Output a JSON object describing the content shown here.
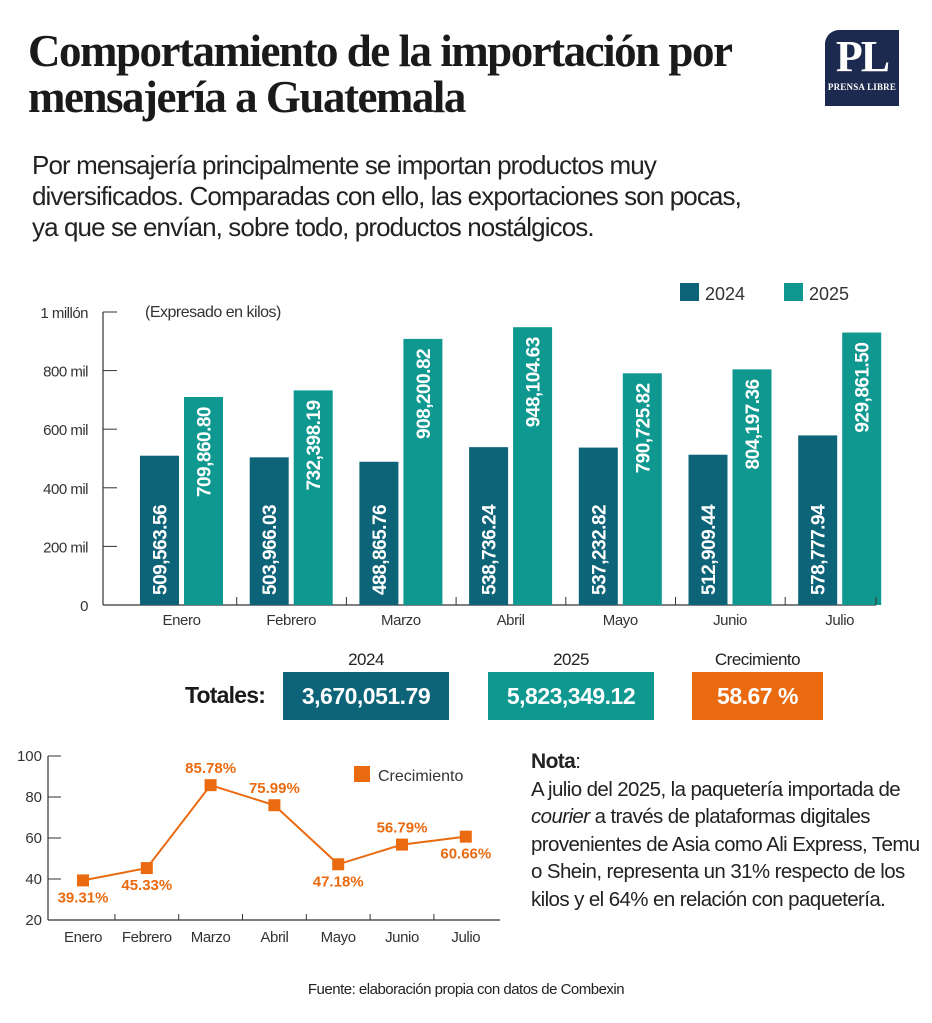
{
  "header": {
    "title": "Comportamiento de la importación por mensajería a Guatemala",
    "subtitle": "Por mensajería principalmente se importan productos muy diversificados. Comparadas con ello, las exportaciones son pocas, ya que se envían, sobre todo, productos nostálgicos.",
    "logo": {
      "monogram": "PL",
      "name": "PRENSA LIBRE",
      "color": "#1c2a4f"
    }
  },
  "chart_data": [
    {
      "type": "bar",
      "title": "",
      "annotation": "(Expresado en kilos)",
      "xlabel": "",
      "ylabel": "",
      "categories": [
        "Enero",
        "Febrero",
        "Marzo",
        "Abril",
        "Mayo",
        "Junio",
        "Julio"
      ],
      "series": [
        {
          "name": "2024",
          "color": "#0d6478",
          "values": [
            509563.56,
            503966.03,
            488865.76,
            538736.24,
            537232.82,
            512909.44,
            578777.94
          ],
          "labels": [
            "509,563.56",
            "503,966.03",
            "488,865.76",
            "538,736.24",
            "537,232.82",
            "512,909.44",
            "578,777.94"
          ]
        },
        {
          "name": "2025",
          "color": "#0e988f",
          "values": [
            709860.8,
            732398.19,
            908200.82,
            948104.63,
            790725.82,
            804197.36,
            929861.5
          ],
          "labels": [
            "709,860.80",
            "732,398.19",
            "908,200.82",
            "948,104.63",
            "790,725.82",
            "804,197.36",
            "929,861.50"
          ]
        }
      ],
      "ylim": [
        0,
        1000000
      ],
      "yticks": [
        0,
        200000,
        400000,
        600000,
        800000,
        1000000
      ],
      "ytick_labels": [
        "0",
        "200 mil",
        "400 mil",
        "600 mil",
        "800 mil",
        "1 millón"
      ],
      "grid": false,
      "legend": "top-right"
    },
    {
      "type": "line",
      "title": "",
      "xlabel": "",
      "ylabel": "",
      "categories": [
        "Enero",
        "Febrero",
        "Marzo",
        "Abril",
        "Mayo",
        "Junio",
        "Julio"
      ],
      "series": [
        {
          "name": "Crecimiento",
          "color": "#ea6a10",
          "values": [
            39.31,
            45.33,
            85.78,
            75.99,
            47.18,
            56.79,
            60.66
          ],
          "labels": [
            "39.31%",
            "45.33%",
            "85.78%",
            "75.99%",
            "47.18%",
            "56.79%",
            "60.66%"
          ]
        }
      ],
      "ylim": [
        20,
        100
      ],
      "yticks": [
        20,
        40,
        60,
        80,
        100
      ],
      "ytick_labels": [
        "20",
        "40",
        "60",
        "80",
        "100"
      ],
      "grid": false,
      "legend": "top-right"
    }
  ],
  "totals": {
    "label": "Totales:",
    "items": [
      {
        "header": "2024",
        "value": "3,670,051.79",
        "color": "#0d6478"
      },
      {
        "header": "2025",
        "value": "5,823,349.12",
        "color": "#0e988f"
      },
      {
        "header": "Crecimiento",
        "value": "58.67 %",
        "color": "#ea6a10"
      }
    ]
  },
  "note": {
    "title": "Nota",
    "colon": ":",
    "text_before": "A julio del 2025, la paquetería importada de ",
    "text_italic": "courier",
    "text_after": " a través de plataformas digitales provenientes de Asia como Ali Express, Temu o Shein, representa un 31% respecto de los kilos y el 64% en relación con paquetería."
  },
  "source": "Fuente: elaboración propia con datos de Combexin"
}
